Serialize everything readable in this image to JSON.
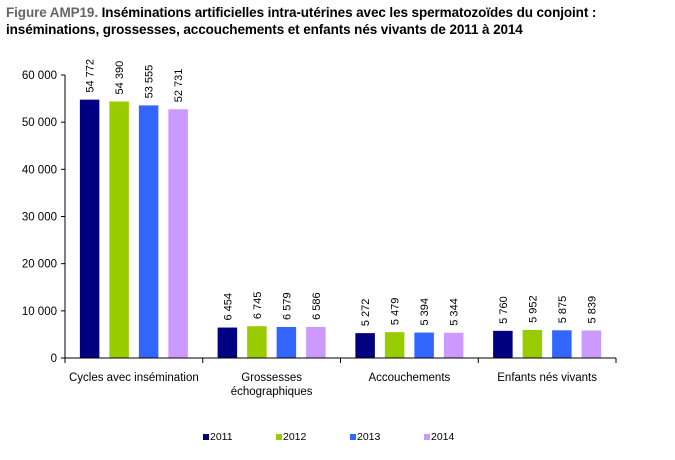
{
  "chart_data": {
    "type": "bar",
    "title_prefix": "Figure AMP19.",
    "title_line1": "Inséminations artificielles intra-utérines avec les spermatozoïdes du conjoint :",
    "title_line2": "inséminations, grossesses, accouchements et enfants nés vivants de 2011 à 2014",
    "xlabel": "",
    "ylabel": "",
    "ylim": [
      0,
      60000
    ],
    "yticks": [
      0,
      10000,
      20000,
      30000,
      40000,
      50000,
      60000
    ],
    "ytick_labels": [
      "0",
      "10 000",
      "20 000",
      "30 000",
      "40 000",
      "50 000",
      "60 000"
    ],
    "categories": [
      [
        "Cycles avec insémination"
      ],
      [
        "Grossesses",
        "échographiques"
      ],
      [
        "Accouchements"
      ],
      [
        "Enfants nés vivants"
      ]
    ],
    "series": [
      {
        "name": "2011",
        "color": "#000080",
        "values": [
          54772,
          6454,
          5272,
          5760
        ],
        "labels": [
          "54 772",
          "6 454",
          "5 272",
          "5 760"
        ]
      },
      {
        "name": "2012",
        "color": "#99CC00",
        "values": [
          54390,
          6745,
          5479,
          5952
        ],
        "labels": [
          "54 390",
          "6 745",
          "5 479",
          "5 952"
        ]
      },
      {
        "name": "2013",
        "color": "#3366FF",
        "values": [
          53555,
          6579,
          5394,
          5875
        ],
        "labels": [
          "53 555",
          "6 579",
          "5 394",
          "5 875"
        ]
      },
      {
        "name": "2014",
        "color": "#CC99FF",
        "values": [
          52731,
          6586,
          5344,
          5839
        ],
        "labels": [
          "52 731",
          "6 586",
          "5 344",
          "5 839"
        ]
      }
    ],
    "grid": false,
    "legend_position": "bottom"
  }
}
